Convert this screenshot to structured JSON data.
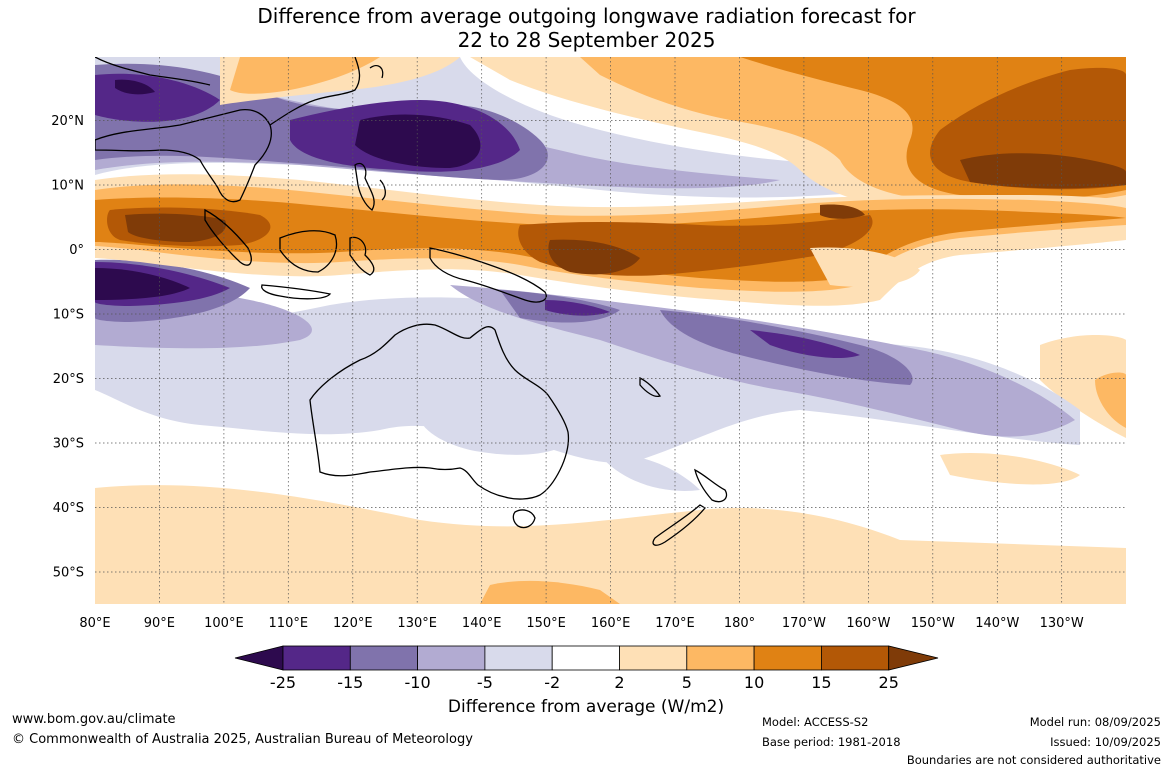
{
  "title": {
    "line1": "Difference from average outgoing longwave radiation forecast for",
    "line2": "22 to 28 September 2025"
  },
  "map": {
    "lon_labels": [
      "80°E",
      "90°E",
      "100°E",
      "110°E",
      "120°E",
      "130°E",
      "140°E",
      "150°E",
      "160°E",
      "170°E",
      "180°",
      "170°W",
      "160°W",
      "150°W",
      "140°W",
      "130°W"
    ],
    "lat_labels": [
      "20°N",
      "10°N",
      "0°",
      "10°S",
      "20°S",
      "30°S",
      "40°S",
      "50°S"
    ],
    "colors": {
      "deep_purple": "#2d0a4e",
      "purple": "#542788",
      "mid_purple": "#8073ac",
      "light_purple": "#b2abd2",
      "pale_purple": "#d8daeb",
      "white": "#ffffff",
      "pale_orange": "#fee0b6",
      "light_orange": "#fdb863",
      "orange": "#e08214",
      "dark_orange": "#b35806",
      "deep_brown": "#7f3b08"
    }
  },
  "colorbar": {
    "ticks": [
      "-25",
      "-15",
      "-10",
      "-5",
      "-2",
      "2",
      "5",
      "10",
      "15",
      "25"
    ],
    "swatches": [
      "#542788",
      "#8073ac",
      "#b2abd2",
      "#d8daeb",
      "#ffffff",
      "#fee0b6",
      "#fdb863",
      "#e08214",
      "#b35806"
    ],
    "min_color": "#2d0a4e",
    "max_color": "#7f3b08",
    "label": "Difference from average (W/m2)"
  },
  "footer": {
    "website": "www.bom.gov.au/climate",
    "copyright": "© Commonwealth of Australia 2025, Australian Bureau of Meteorology",
    "model": "Model: ACCESS-S2",
    "base_period": "Base period: 1981-2018",
    "model_run": "Model run: 08/09/2025",
    "issued": "Issued: 10/09/2025",
    "disclaimer": "Boundaries are not considered authoritative"
  }
}
